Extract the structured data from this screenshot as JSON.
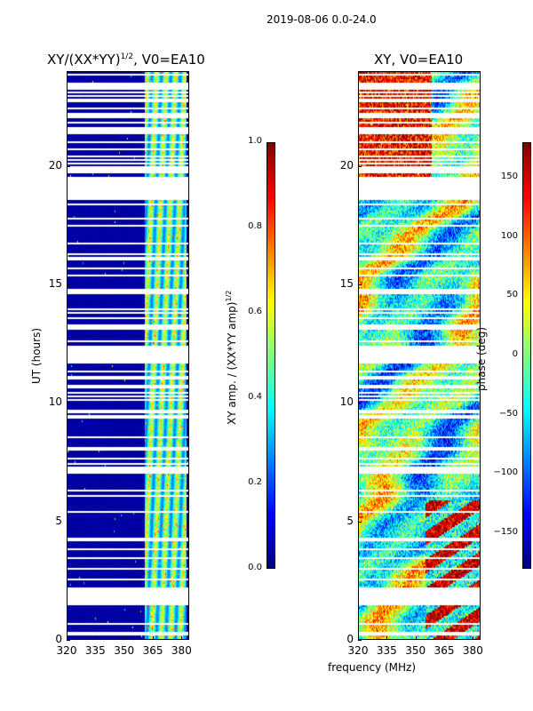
{
  "suptitle": "2019-08-06 0.0-24.0",
  "xlabel_shared": "frequency (MHz)",
  "colors": {
    "jet": [
      "#00007f",
      "#0000ff",
      "#007fff",
      "#00ffff",
      "#7fff7f",
      "#ffff00",
      "#ff7f00",
      "#ff0000",
      "#7f0000"
    ],
    "gap": "#ffffff"
  },
  "chart_data": [
    {
      "type": "heatmap",
      "title": "XY/(XX*YY)",
      "title_exponent": "1/2",
      "title_suffix": ", V0=EA10",
      "xlabel": "",
      "ylabel": "UT (hours)",
      "xlim": [
        320,
        384
      ],
      "ylim": [
        0,
        24
      ],
      "xticks": [
        320,
        335,
        350,
        365,
        380
      ],
      "yticks": [
        0,
        5,
        10,
        15,
        20
      ],
      "colorbar": {
        "label": "XY amp. / (XX*YY amp)",
        "label_exponent": "1/2",
        "range": [
          0.0,
          1.0
        ],
        "ticks": [
          "0.0",
          "0.2",
          "0.4",
          "0.6",
          "0.8",
          "1.0"
        ]
      },
      "description_values": {
        "background_level": 0.02,
        "signal_freq_range_mhz": [
          361,
          383
        ],
        "signal_level_range": [
          0.25,
          0.65
        ]
      }
    },
    {
      "type": "heatmap",
      "title": "XY, V0=EA10",
      "xlabel": "frequency (MHz)",
      "ylabel": "",
      "xlim": [
        320,
        384
      ],
      "ylim": [
        0,
        24
      ],
      "xticks": [
        320,
        335,
        350,
        365,
        380
      ],
      "yticks": [
        0,
        5,
        10,
        15,
        20
      ],
      "colorbar": {
        "label": "phase (deg)",
        "range": [
          -180,
          180
        ],
        "ticks": [
          "150",
          "100",
          "50",
          "0",
          "−50",
          "−100",
          "−150"
        ]
      }
    }
  ]
}
